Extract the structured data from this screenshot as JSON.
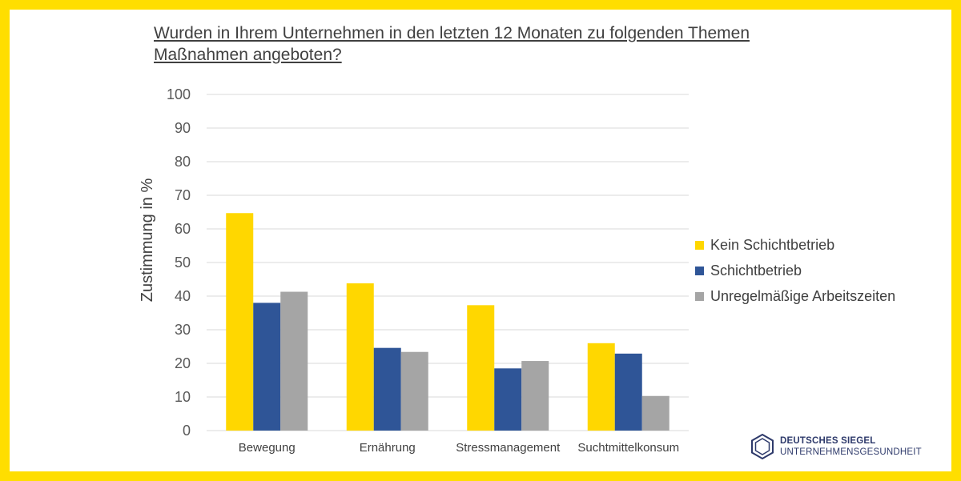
{
  "title": "Wurden in Ihrem Unternehmen in den letzten 12 Monaten zu folgenden Themen Maßnahmen angeboten?",
  "logo": {
    "line1": "DEUTSCHES SIEGEL",
    "line2": "UNTERNEHMENSGESUNDHEIT",
    "icon": "hexagon-icon"
  },
  "colors": {
    "frame": "#FFDE00",
    "series": [
      "#FFD700",
      "#2F5597",
      "#A5A5A5"
    ]
  },
  "chart_data": {
    "type": "bar",
    "title": "Wurden in Ihrem Unternehmen in den letzten 12 Monaten zu folgenden Themen Maßnahmen angeboten?",
    "xlabel": "",
    "ylabel": "Zustimmung in %",
    "ylim": [
      0,
      100
    ],
    "yticks": [
      0,
      10,
      20,
      30,
      40,
      50,
      60,
      70,
      80,
      90,
      100
    ],
    "grid": true,
    "legend_position": "right",
    "categories": [
      "Bewegung",
      "Ernährung",
      "Stressmanagement",
      "Suchtmittelkonsum"
    ],
    "series": [
      {
        "name": "Kein Schichtbetrieb",
        "color": "#FFD700",
        "values": [
          64.7,
          43.8,
          37.3,
          26.0
        ]
      },
      {
        "name": "Schichtbetrieb",
        "color": "#2F5597",
        "values": [
          38.0,
          24.6,
          18.5,
          22.9
        ]
      },
      {
        "name": "Unregelmäßige Arbeitszeiten",
        "color": "#A5A5A5",
        "values": [
          41.3,
          23.4,
          20.7,
          10.3
        ]
      }
    ]
  }
}
